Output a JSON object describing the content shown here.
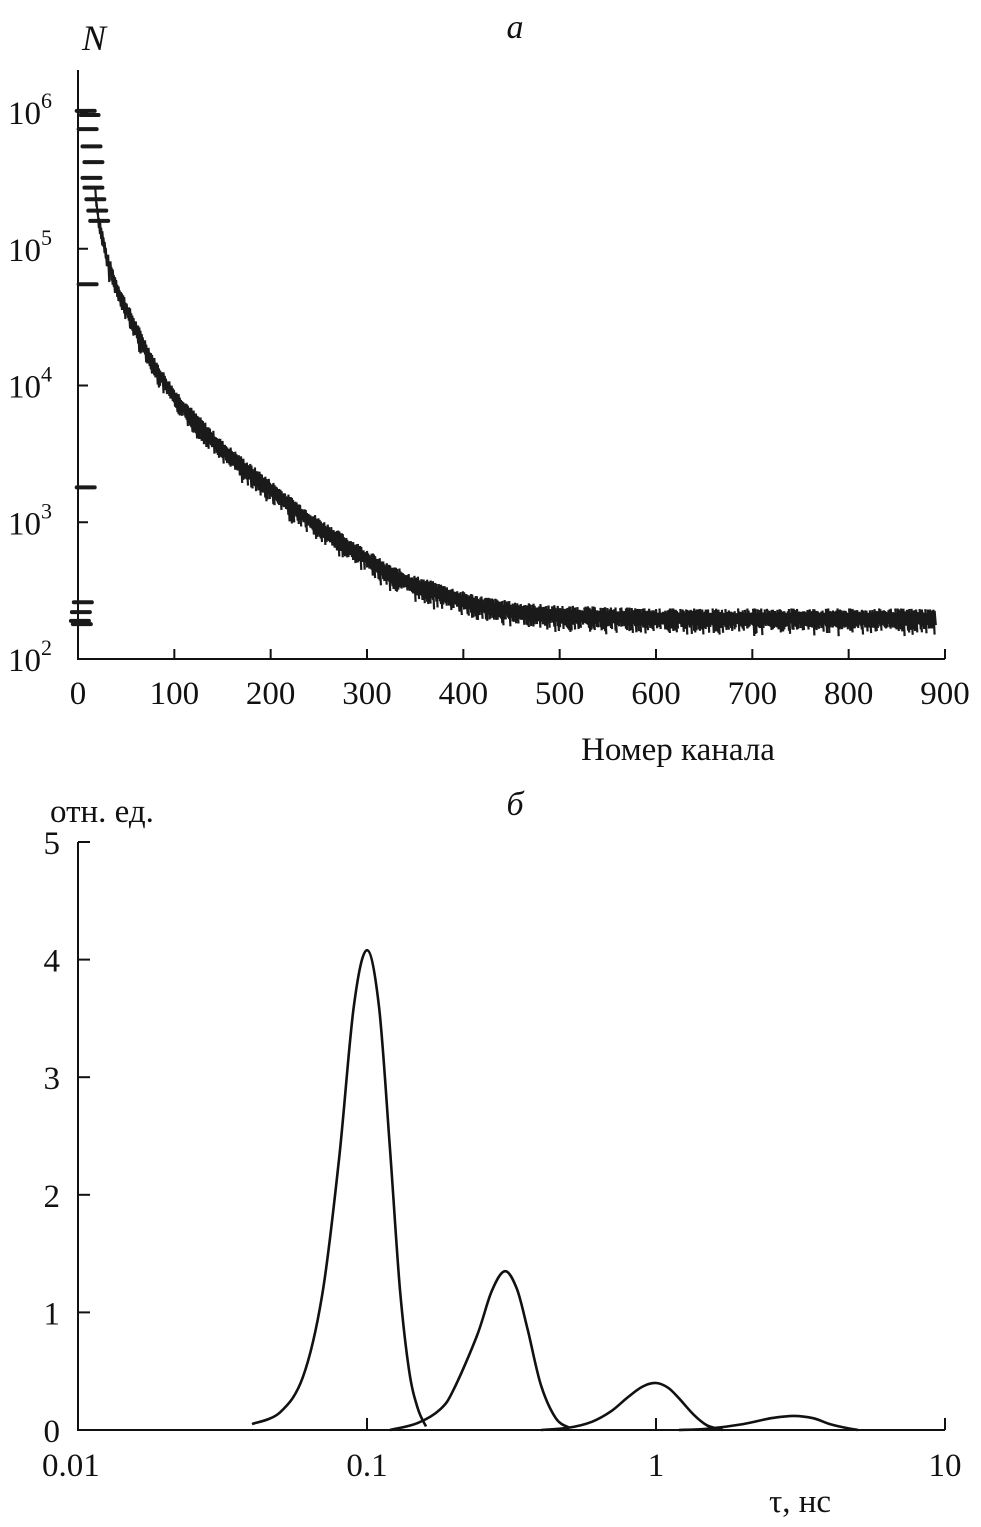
{
  "chart_data": [
    {
      "panel": "а",
      "type": "scatter",
      "ylabel": "N",
      "xlabel": "Номер канала",
      "xlim": [
        0,
        900
      ],
      "ylim": [
        100,
        2000000
      ],
      "yscale": "log",
      "xticks": [
        "0",
        "100",
        "200",
        "300",
        "400",
        "500",
        "600",
        "700",
        "800",
        "900"
      ],
      "yticks": [
        {
          "base": "10",
          "exp": "2"
        },
        {
          "base": "10",
          "exp": "3"
        },
        {
          "base": "10",
          "exp": "4"
        },
        {
          "base": "10",
          "exp": "5"
        },
        {
          "base": "10",
          "exp": "6"
        }
      ],
      "series": [
        {
          "x": [
            0,
            5,
            10,
            15,
            20,
            30,
            40,
            50,
            60,
            80,
            100,
            120,
            150,
            180,
            200,
            220,
            250,
            280,
            300,
            320,
            350,
            380,
            400,
            420,
            450,
            480,
            500,
            550,
            600,
            650,
            700,
            750,
            800,
            850,
            890
          ],
          "y": [
            190,
            1000000,
            800000,
            400000,
            170000,
            80000,
            50000,
            35000,
            25000,
            13000,
            8000,
            5500,
            3300,
            2200,
            1700,
            1300,
            900,
            650,
            530,
            420,
            340,
            290,
            260,
            240,
            220,
            210,
            205,
            200,
            195,
            195,
            195,
            195,
            195,
            195,
            195
          ]
        }
      ]
    },
    {
      "panel": "б",
      "type": "line",
      "ylabel": "отн. ед.",
      "xlabel": "τ, нс",
      "xscale": "log",
      "xlim": [
        0.01,
        10
      ],
      "ylim": [
        0,
        5
      ],
      "xticks": [
        "0.01",
        "0.1",
        "1",
        "10"
      ],
      "yticks": [
        "0",
        "1",
        "2",
        "3",
        "4",
        "5"
      ],
      "series": [
        {
          "peaks": [
            {
              "center": 0.1,
              "height": 4.08,
              "x": [
                0.04,
                0.05,
                0.06,
                0.07,
                0.08,
                0.09,
                0.1,
                0.11,
                0.12,
                0.13,
                0.14,
                0.15,
                0.16
              ],
              "y": [
                0.05,
                0.15,
                0.45,
                1.15,
                2.3,
                3.6,
                4.08,
                3.6,
                2.4,
                1.2,
                0.5,
                0.18,
                0.03
              ]
            },
            {
              "center": 0.3,
              "height": 1.35,
              "x": [
                0.12,
                0.15,
                0.18,
                0.2,
                0.24,
                0.27,
                0.3,
                0.33,
                0.36,
                0.4,
                0.45,
                0.5
              ],
              "y": [
                0.0,
                0.06,
                0.18,
                0.35,
                0.8,
                1.18,
                1.35,
                1.2,
                0.85,
                0.38,
                0.1,
                0.02
              ]
            },
            {
              "center": 1.0,
              "height": 0.4,
              "x": [
                0.4,
                0.5,
                0.6,
                0.7,
                0.8,
                0.9,
                1.0,
                1.1,
                1.2,
                1.35,
                1.5,
                1.7
              ],
              "y": [
                0.0,
                0.02,
                0.07,
                0.16,
                0.28,
                0.37,
                0.4,
                0.36,
                0.27,
                0.13,
                0.04,
                0.0
              ]
            },
            {
              "center": 3.0,
              "height": 0.12,
              "x": [
                1.2,
                1.5,
                2.0,
                2.5,
                3.0,
                3.5,
                4.0,
                4.5,
                5.0
              ],
              "y": [
                0.0,
                0.01,
                0.05,
                0.1,
                0.12,
                0.1,
                0.05,
                0.02,
                0.0
              ]
            }
          ]
        }
      ]
    }
  ]
}
